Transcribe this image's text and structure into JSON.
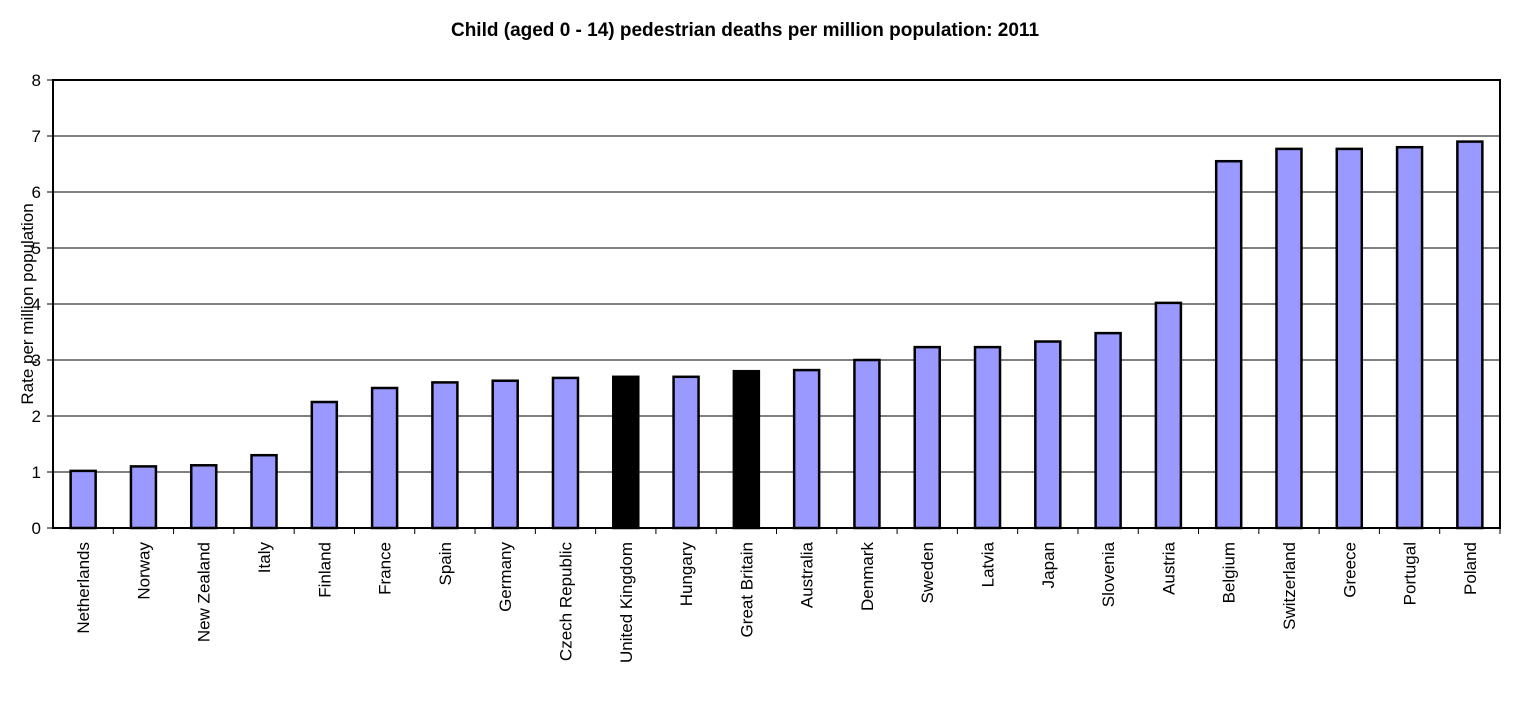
{
  "chart_data": {
    "type": "bar",
    "title": "Child (aged 0 - 14) pedestrian deaths per million population: 2011",
    "xlabel": "",
    "ylabel": "Rate per million population",
    "ylim": [
      0,
      8
    ],
    "yticks": [
      0,
      1,
      2,
      3,
      4,
      5,
      6,
      7,
      8
    ],
    "grid": true,
    "categories": [
      "Netherlands",
      "Norway",
      "New Zealand",
      "Italy",
      "Finland",
      "France",
      "Spain",
      "Germany",
      "Czech Republic",
      "United Kingdom",
      "Hungary",
      "Great Britain",
      "Australia",
      "Denmark",
      "Sweden",
      "Latvia",
      "Japan",
      "Slovenia",
      "Austria",
      "Belgium",
      "Switzerland",
      "Greece",
      "Portugal",
      "Poland"
    ],
    "values": [
      1.02,
      1.1,
      1.12,
      1.3,
      2.25,
      2.5,
      2.6,
      2.63,
      2.68,
      2.7,
      2.7,
      2.8,
      2.82,
      3.0,
      3.23,
      3.23,
      3.33,
      3.48,
      4.02,
      6.55,
      6.77,
      6.77,
      6.8,
      6.9
    ],
    "highlight": [
      "United Kingdom",
      "Great Britain"
    ],
    "colors": {
      "bar": "#9999ff",
      "highlight": "#000000",
      "outline": "#000000",
      "grid": "#000000"
    }
  }
}
